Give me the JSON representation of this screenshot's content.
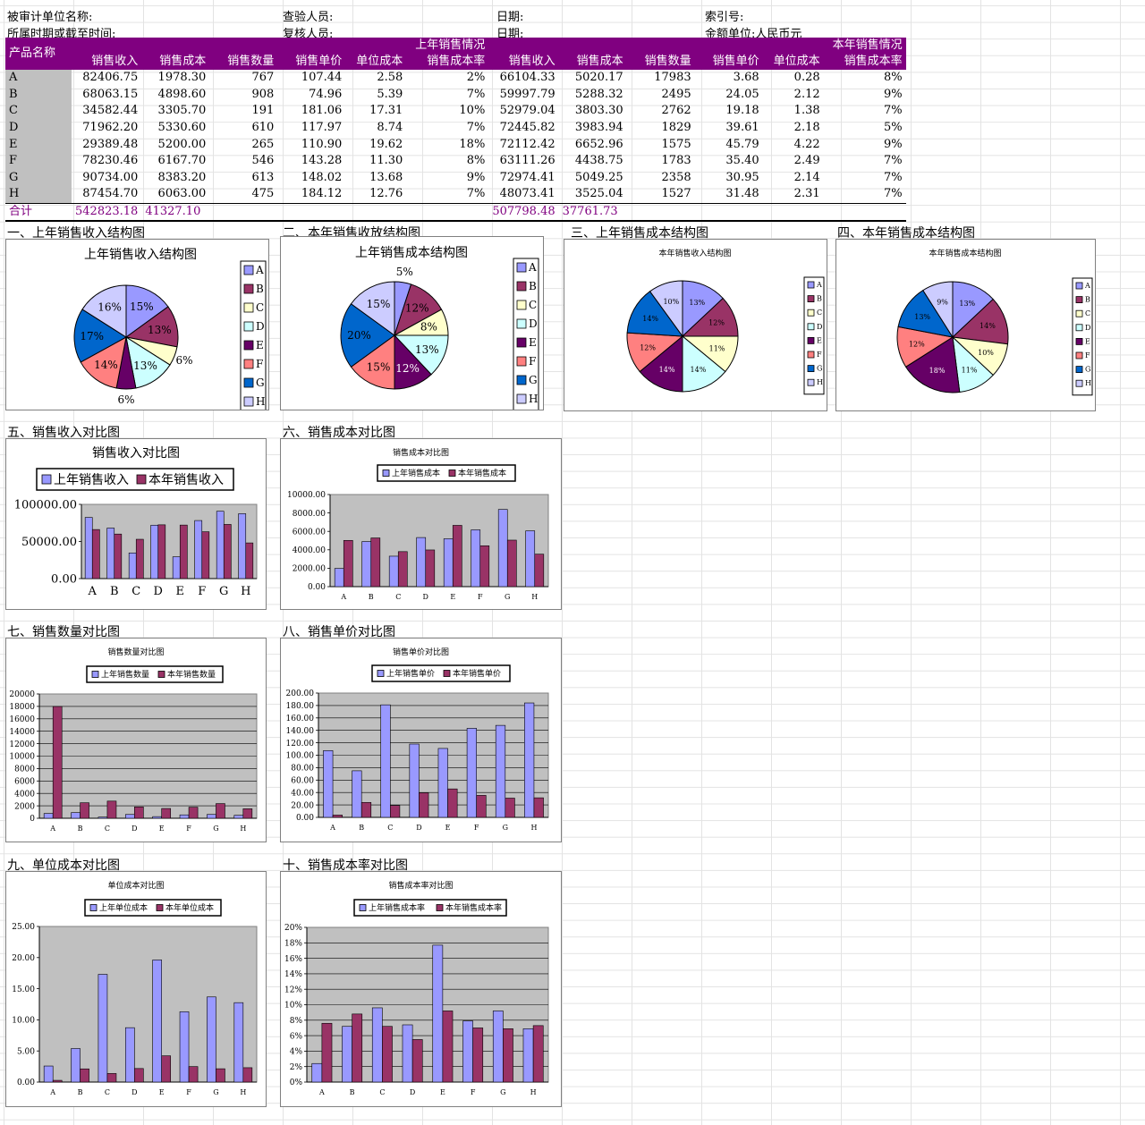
{
  "header": {
    "unit_label": "被审计单位名称:",
    "period_label": "所属时期或截至时间:",
    "checker_label": "查验人员:",
    "reviewer_label": "复核人员:",
    "date_label1": "日期:",
    "date_label2": "日期:",
    "index_label": "索引号:",
    "currency_label": "金额单位:人民币元"
  },
  "table": {
    "name_header": "产品名称",
    "prev_group": "上年销售情况",
    "curr_group": "本年销售情况",
    "columns": [
      "销售收入",
      "销售成本",
      "销售数量",
      "销售单价",
      "单位成本",
      "销售成本率"
    ],
    "rows": [
      {
        "name": "A",
        "p": [
          "82406.75",
          "1978.30",
          "767",
          "107.44",
          "2.58",
          "2%"
        ],
        "c": [
          "66104.33",
          "5020.17",
          "17983",
          "3.68",
          "0.28",
          "8%"
        ]
      },
      {
        "name": "B",
        "p": [
          "68063.15",
          "4898.60",
          "908",
          "74.96",
          "5.39",
          "7%"
        ],
        "c": [
          "59997.79",
          "5288.32",
          "2495",
          "24.05",
          "2.12",
          "9%"
        ]
      },
      {
        "name": "C",
        "p": [
          "34582.44",
          "3305.70",
          "191",
          "181.06",
          "17.31",
          "10%"
        ],
        "c": [
          "52979.04",
          "3803.30",
          "2762",
          "19.18",
          "1.38",
          "7%"
        ]
      },
      {
        "name": "D",
        "p": [
          "71962.20",
          "5330.60",
          "610",
          "117.97",
          "8.74",
          "7%"
        ],
        "c": [
          "72445.82",
          "3983.94",
          "1829",
          "39.61",
          "2.18",
          "5%"
        ]
      },
      {
        "name": "E",
        "p": [
          "29389.48",
          "5200.00",
          "265",
          "110.90",
          "19.62",
          "18%"
        ],
        "c": [
          "72112.42",
          "6652.96",
          "1575",
          "45.79",
          "4.22",
          "9%"
        ]
      },
      {
        "name": "F",
        "p": [
          "78230.46",
          "6167.70",
          "546",
          "143.28",
          "11.30",
          "8%"
        ],
        "c": [
          "63111.26",
          "4438.75",
          "1783",
          "35.40",
          "2.49",
          "7%"
        ]
      },
      {
        "name": "G",
        "p": [
          "90734.00",
          "8383.20",
          "613",
          "148.02",
          "13.68",
          "9%"
        ],
        "c": [
          "72974.41",
          "5049.25",
          "2358",
          "30.95",
          "2.14",
          "7%"
        ]
      },
      {
        "name": "H",
        "p": [
          "87454.70",
          "6063.00",
          "475",
          "184.12",
          "12.76",
          "7%"
        ],
        "c": [
          "48073.41",
          "3525.04",
          "1527",
          "31.48",
          "2.31",
          "7%"
        ]
      }
    ],
    "total": {
      "label": "合计",
      "p_rev": "542823.18",
      "p_cost": "41327.10",
      "c_rev": "507798.48",
      "c_cost": "37761.73"
    }
  },
  "sections": {
    "s1": "一、上年销售收入结构图",
    "s2": "二、本年销售收放结构图",
    "s3": "三、上年销售成本结构图",
    "s4": "四、本年销售成本结构图",
    "s5": "五、销售收入对比图",
    "s6": "六、销售成本对比图",
    "s7": "七、销售数量对比图",
    "s8": "八、销售单价对比图",
    "s9": "九、单位成本对比图",
    "s10": "十、销售成本率对比图"
  },
  "colors": {
    "slices": [
      "#9999ff",
      "#993366",
      "#ffffcc",
      "#ccffff",
      "#660066",
      "#ff8080",
      "#0066cc",
      "#ccccff"
    ],
    "prev": "#9999ff",
    "curr": "#993366",
    "plot_bg": "#c0c0c0",
    "header_bg": "#800080"
  },
  "chart_data": [
    {
      "id": "pie1",
      "type": "pie",
      "title": "上年销售收入结构图",
      "categories": [
        "A",
        "B",
        "C",
        "D",
        "E",
        "F",
        "G",
        "H"
      ],
      "values": [
        15,
        13,
        6,
        13,
        6,
        14,
        17,
        16
      ],
      "labels": [
        "15%",
        "13%",
        "6%",
        "13%",
        "6%",
        "14%",
        "17%",
        "16%"
      ]
    },
    {
      "id": "pie2",
      "type": "pie",
      "title": "上年销售成本结构图",
      "categories": [
        "A",
        "B",
        "C",
        "D",
        "E",
        "F",
        "G",
        "H"
      ],
      "values": [
        5,
        12,
        8,
        13,
        12,
        15,
        20,
        15
      ],
      "labels": [
        "5%",
        "12%",
        "8%",
        "13%",
        "12%",
        "15%",
        "20%",
        "15%"
      ]
    },
    {
      "id": "pie3",
      "type": "pie",
      "title": "本年销售收入结构图",
      "categories": [
        "A",
        "B",
        "C",
        "D",
        "E",
        "F",
        "G",
        "H"
      ],
      "values": [
        13,
        12,
        11,
        14,
        14,
        12,
        14,
        10
      ],
      "labels": [
        "13%",
        "12%",
        "11%",
        "14%",
        "14%",
        "12%",
        "14%",
        "10%"
      ]
    },
    {
      "id": "pie4",
      "type": "pie",
      "title": "本年销售成本结构图",
      "categories": [
        "A",
        "B",
        "C",
        "D",
        "E",
        "F",
        "G",
        "H"
      ],
      "values": [
        13,
        14,
        10,
        11,
        18,
        12,
        13,
        9
      ],
      "labels": [
        "13%",
        "14%",
        "10%",
        "11%",
        "18%",
        "12%",
        "13%",
        "9%"
      ]
    },
    {
      "id": "bar5",
      "type": "bar",
      "title": "销售收入对比图",
      "categories": [
        "A",
        "B",
        "C",
        "D",
        "E",
        "F",
        "G",
        "H"
      ],
      "series": [
        {
          "name": "上年销售收入",
          "values": [
            82406.75,
            68063.15,
            34582.44,
            71962.2,
            29389.48,
            78230.46,
            90734,
            87454.7
          ]
        },
        {
          "name": "本年销售收入",
          "values": [
            66104.33,
            59997.79,
            52979.04,
            72445.82,
            72112.42,
            63111.26,
            72974.41,
            48073.41
          ]
        }
      ],
      "ylim": [
        0,
        100000
      ],
      "ticks": [
        "0.00",
        "50000.00",
        "100000.00"
      ]
    },
    {
      "id": "bar6",
      "type": "bar",
      "title": "销售成本对比图",
      "categories": [
        "A",
        "B",
        "C",
        "D",
        "E",
        "F",
        "G",
        "H"
      ],
      "series": [
        {
          "name": "上年销售成本",
          "values": [
            1978.3,
            4898.6,
            3305.7,
            5330.6,
            5200,
            6167.7,
            8383.2,
            6063
          ]
        },
        {
          "name": "本年销售成本",
          "values": [
            5020.17,
            5288.32,
            3803.3,
            3983.94,
            6652.96,
            4438.75,
            5049.25,
            3525.04
          ]
        }
      ],
      "ylim": [
        0,
        10000
      ],
      "ticks": [
        "0.00",
        "2000.00",
        "4000.00",
        "6000.00",
        "8000.00",
        "10000.00"
      ]
    },
    {
      "id": "bar7",
      "type": "bar",
      "title": "销售数量对比图",
      "categories": [
        "A",
        "B",
        "C",
        "D",
        "E",
        "F",
        "G",
        "H"
      ],
      "series": [
        {
          "name": "上年销售数量",
          "values": [
            767,
            908,
            191,
            610,
            265,
            546,
            613,
            475
          ]
        },
        {
          "name": "本年销售数量",
          "values": [
            17983,
            2495,
            2762,
            1829,
            1575,
            1783,
            2358,
            1527
          ]
        }
      ],
      "ylim": [
        0,
        20000
      ],
      "ticks": [
        "0",
        "2000",
        "4000",
        "6000",
        "8000",
        "10000",
        "12000",
        "14000",
        "16000",
        "18000",
        "20000"
      ]
    },
    {
      "id": "bar8",
      "type": "bar",
      "title": "销售单价对比图",
      "categories": [
        "A",
        "B",
        "C",
        "D",
        "E",
        "F",
        "G",
        "H"
      ],
      "series": [
        {
          "name": "上年销售单价",
          "values": [
            107.44,
            74.96,
            181.06,
            117.97,
            110.9,
            143.28,
            148.02,
            184.12
          ]
        },
        {
          "name": "本年销售单价",
          "values": [
            3.68,
            24.05,
            19.18,
            39.61,
            45.79,
            35.4,
            30.95,
            31.48
          ]
        }
      ],
      "ylim": [
        0,
        200
      ],
      "ticks": [
        "0.00",
        "20.00",
        "40.00",
        "60.00",
        "80.00",
        "100.00",
        "120.00",
        "140.00",
        "160.00",
        "180.00",
        "200.00"
      ]
    },
    {
      "id": "bar9",
      "type": "bar",
      "title": "单位成本对比图",
      "categories": [
        "A",
        "B",
        "C",
        "D",
        "E",
        "F",
        "G",
        "H"
      ],
      "series": [
        {
          "name": "上年单位成本",
          "values": [
            2.58,
            5.39,
            17.31,
            8.74,
            19.62,
            11.3,
            13.68,
            12.76
          ]
        },
        {
          "name": "本年单位成本",
          "values": [
            0.28,
            2.12,
            1.38,
            2.18,
            4.22,
            2.49,
            2.14,
            2.31
          ]
        }
      ],
      "ylim": [
        0,
        25
      ],
      "ticks": [
        "0.00",
        "5.00",
        "10.00",
        "15.00",
        "20.00",
        "25.00"
      ]
    },
    {
      "id": "bar10",
      "type": "bar",
      "title": "销售成本率对比图",
      "categories": [
        "A",
        "B",
        "C",
        "D",
        "E",
        "F",
        "G",
        "H"
      ],
      "series": [
        {
          "name": "上年销售成本率",
          "values": [
            2.4,
            7.2,
            9.6,
            7.4,
            17.7,
            7.9,
            9.2,
            6.9
          ]
        },
        {
          "name": "本年销售成本率",
          "values": [
            7.6,
            8.8,
            7.2,
            5.5,
            9.2,
            7.0,
            6.9,
            7.3
          ]
        }
      ],
      "ylim": [
        0,
        20
      ],
      "ticks": [
        "0%",
        "2%",
        "4%",
        "6%",
        "8%",
        "10%",
        "12%",
        "14%",
        "16%",
        "18%",
        "20%"
      ]
    }
  ]
}
